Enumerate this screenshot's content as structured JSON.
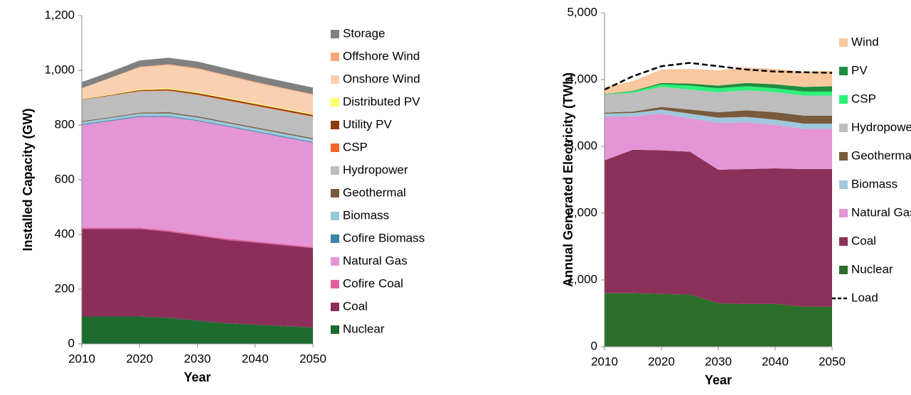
{
  "chart_data": [
    {
      "type": "stacked_area",
      "y_label": "Installed Capacity (GW)",
      "x_label": "Year",
      "x": [
        2010,
        2015,
        2020,
        2025,
        2030,
        2035,
        2040,
        2045,
        2050
      ],
      "xlim": [
        2010,
        2050
      ],
      "xticks": [
        2010,
        2020,
        2030,
        2040,
        2050
      ],
      "ylim": [
        0,
        1200
      ],
      "yticks": [
        0,
        200,
        400,
        600,
        800,
        {
          "value": 1000,
          "label": "1,000"
        },
        {
          "value": 1200,
          "label": "1,200"
        }
      ],
      "series": [
        {
          "name": "Nuclear",
          "color": "#1e6b30",
          "values": [
            100,
            100,
            100,
            95,
            85,
            75,
            70,
            65,
            60
          ]
        },
        {
          "name": "Coal",
          "color": "#8b2f5a",
          "values": [
            320,
            320,
            320,
            315,
            310,
            305,
            300,
            295,
            290
          ]
        },
        {
          "name": "Cofire Coal",
          "color": "#e0609c",
          "values": [
            5,
            5,
            5,
            5,
            5,
            5,
            5,
            5,
            5
          ]
        },
        {
          "name": "Natural Gas",
          "color": "#e495d6",
          "values": [
            375,
            390,
            405,
            415,
            415,
            410,
            400,
            390,
            380
          ]
        },
        {
          "name": "Cofire Biomass",
          "color": "#3a86a8",
          "values": [
            3,
            3,
            3,
            3,
            3,
            3,
            3,
            3,
            3
          ]
        },
        {
          "name": "Biomass",
          "color": "#9cc8dc",
          "values": [
            8,
            8,
            9,
            10,
            10,
            10,
            10,
            10,
            10
          ]
        },
        {
          "name": "Geothermal",
          "color": "#7a5a3c",
          "values": [
            3,
            3,
            3,
            4,
            4,
            4,
            4,
            4,
            4
          ]
        },
        {
          "name": "Hydropower",
          "color": "#bdbdbd",
          "values": [
            78,
            78,
            78,
            78,
            78,
            78,
            78,
            78,
            78
          ]
        },
        {
          "name": "CSP",
          "color": "#f26522",
          "values": [
            1,
            1,
            2,
            2,
            2,
            2,
            2,
            2,
            2
          ]
        },
        {
          "name": "Utility PV",
          "color": "#8b3a0f",
          "values": [
            1,
            2,
            3,
            4,
            5,
            5,
            5,
            5,
            5
          ]
        },
        {
          "name": "Distributed PV",
          "color": "#ffff66",
          "values": [
            1,
            2,
            3,
            3,
            3,
            3,
            3,
            3,
            3
          ]
        },
        {
          "name": "Onshore Wind",
          "color": "#f9d0b0",
          "values": [
            40,
            60,
            80,
            85,
            85,
            80,
            75,
            72,
            70
          ]
        },
        {
          "name": "Offshore Wind",
          "color": "#f7a878",
          "values": [
            0,
            1,
            2,
            3,
            3,
            3,
            3,
            3,
            3
          ]
        },
        {
          "name": "Storage",
          "color": "#808080",
          "values": [
            22,
            22,
            23,
            24,
            24,
            24,
            24,
            24,
            24
          ]
        }
      ]
    },
    {
      "type": "stacked_area",
      "y_label": "Annual Generated Electricity (TWh)",
      "x_label": "Year",
      "x": [
        2010,
        2015,
        2020,
        2025,
        2030,
        2035,
        2040,
        2045,
        2050
      ],
      "xlim": [
        2010,
        2050
      ],
      "xticks": [
        2010,
        2020,
        2030,
        2040,
        2050
      ],
      "ylim": [
        0,
        5000
      ],
      "yticks": [
        0,
        {
          "value": 1000,
          "label": "1,000"
        },
        {
          "value": 2000,
          "label": "2,000"
        },
        {
          "value": 3000,
          "label": "3,000"
        },
        {
          "value": 4000,
          "label": "4,000"
        },
        {
          "value": 5000,
          "label": "5,000"
        }
      ],
      "series": [
        {
          "name": "Nuclear",
          "color": "#2b6e2b",
          "values": [
            800,
            800,
            790,
            780,
            650,
            640,
            640,
            600,
            600
          ]
        },
        {
          "name": "Coal",
          "color": "#8b3058",
          "values": [
            1990,
            2150,
            2150,
            2140,
            2000,
            2020,
            2030,
            2060,
            2060
          ]
        },
        {
          "name": "Natural Gas",
          "color": "#e495d6",
          "values": [
            650,
            500,
            550,
            500,
            700,
            700,
            650,
            600,
            600
          ]
        },
        {
          "name": "Biomass",
          "color": "#a0c8dc",
          "values": [
            50,
            50,
            60,
            70,
            80,
            80,
            80,
            80,
            80
          ]
        },
        {
          "name": "Geothermal",
          "color": "#7a5a3c",
          "values": [
            15,
            20,
            40,
            60,
            80,
            100,
            110,
            120,
            120
          ]
        },
        {
          "name": "Hydropower",
          "color": "#bdbdbd",
          "values": [
            270,
            280,
            300,
            300,
            300,
            300,
            300,
            300,
            300
          ]
        },
        {
          "name": "CSP",
          "color": "#2ef07a",
          "values": [
            5,
            20,
            40,
            60,
            60,
            60,
            60,
            60,
            60
          ]
        },
        {
          "name": "PV",
          "color": "#1e8e3e",
          "values": [
            5,
            10,
            20,
            30,
            40,
            50,
            60,
            70,
            80
          ]
        },
        {
          "name": "Wind",
          "color": "#f9c89e",
          "values": [
            100,
            150,
            200,
            220,
            230,
            230,
            230,
            230,
            230
          ]
        }
      ],
      "line_series": [
        {
          "name": "Load",
          "color": "#000000",
          "dashed": true,
          "values": [
            3850,
            4050,
            4200,
            4250,
            4200,
            4150,
            4120,
            4110,
            4100
          ]
        }
      ]
    }
  ]
}
